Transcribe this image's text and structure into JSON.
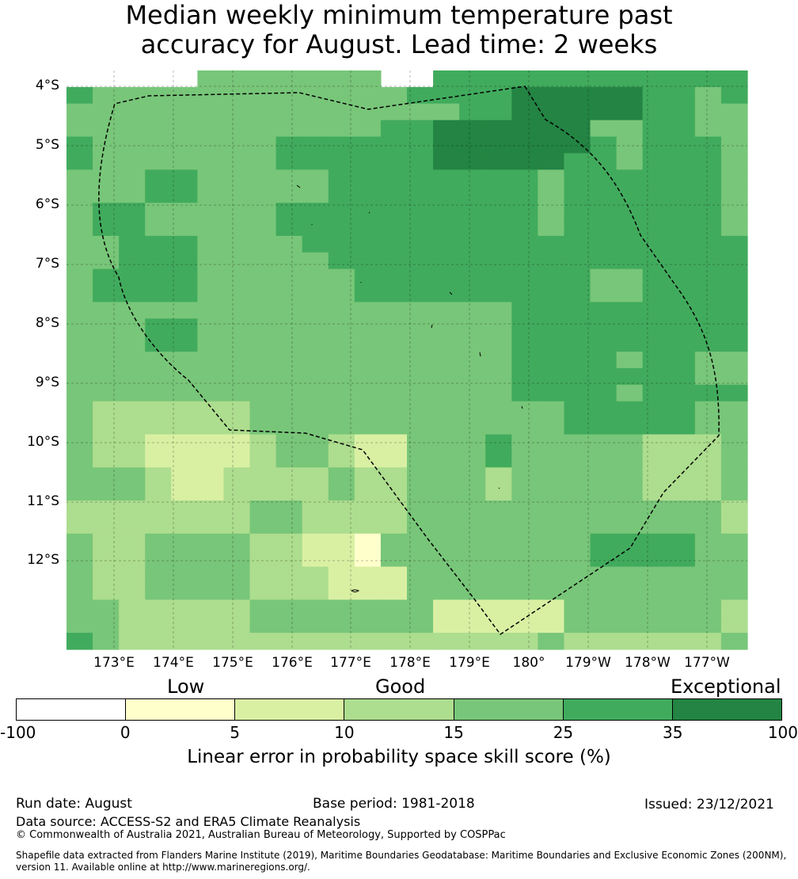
{
  "title_line1": "Median weekly minimum temperature past",
  "title_line2": "accuracy for August. Lead time: 2 weeks",
  "map": {
    "lat_labels": [
      "4°S",
      "5°S",
      "6°S",
      "7°S",
      "8°S",
      "9°S",
      "10°S",
      "11°S",
      "12°S"
    ],
    "lon_labels": [
      "173°E",
      "174°E",
      "175°E",
      "176°E",
      "177°E",
      "178°E",
      "179°E",
      "180°",
      "179°W",
      "178°W",
      "177°W"
    ]
  },
  "colors": {
    "c0": "#ffffff",
    "c1": "#ffffcc",
    "c2": "#d9f0a3",
    "c3": "#addd8e",
    "c4": "#78c679",
    "c5": "#41ab5d",
    "c6": "#238443"
  },
  "grid": [
    "-----4444444--555555555555",
    "54444444444445555666665545",
    "44444444444444455666665544",
    "44444444444455666666445544",
    "54444444555555666666545554",
    "54444444555555666665545554",
    "44455444445555555545555554",
    "44455444445555555545555554",
    "45544444555555555545555554",
    "45544444555555555545555554",
    "44555444455555555555555555",
    "44555444445555555555555555",
    "45555444444555555555445555",
    "45555444444555555555445555",
    "44444444444444444555555555",
    "44455444444444444555555555",
    "44455444444444444555555555",
    "44444444444444444555545544",
    "44444444444444444555555544",
    "44444444444444444555545555",
    "43333334444444444445555544",
    "43333334444444444445555544",
    "43322223443224445444443334",
    "43322223443224445444443334",
    "44432233334334443444443334",
    "44432233334334443444443334",
    "33333334433334444444444443",
    "33333334433334444444444443",
    "43344443322144444444555544",
    "43344443322144444444555544",
    "43344443332224444444444444",
    "43344443332224444444444444",
    "44333334444444222224444443",
    "44333334444444222224444443",
    "54333333333333333343333334"
  ],
  "colorbar": {
    "category_labels": [
      "Low",
      "Good",
      "Exceptional"
    ],
    "ticks": [
      "-100",
      "0",
      "5",
      "10",
      "15",
      "25",
      "35",
      "100"
    ],
    "title": "Linear error in probability space skill score (%)"
  },
  "footer": {
    "run_date": "Run date: August",
    "base_period": "Base period: 1981-2018",
    "issued": "Issued: 23/12/2021",
    "data_source": "Data source: ACCESS-S2 and ERA5 Climate Reanalysis",
    "copyright": "© Commonwealth of Australia 2021, Australian Bureau of Meteorology, Supported by COSPPac",
    "shapefile_1": "Shapefile data extracted from Flanders Marine Institute (2019), Maritime Boundaries Geodatabase: Maritime Boundaries and Exclusive Economic Zones (200NM),",
    "shapefile_2": "version 11. Available online at http://www.marineregions.org/."
  }
}
